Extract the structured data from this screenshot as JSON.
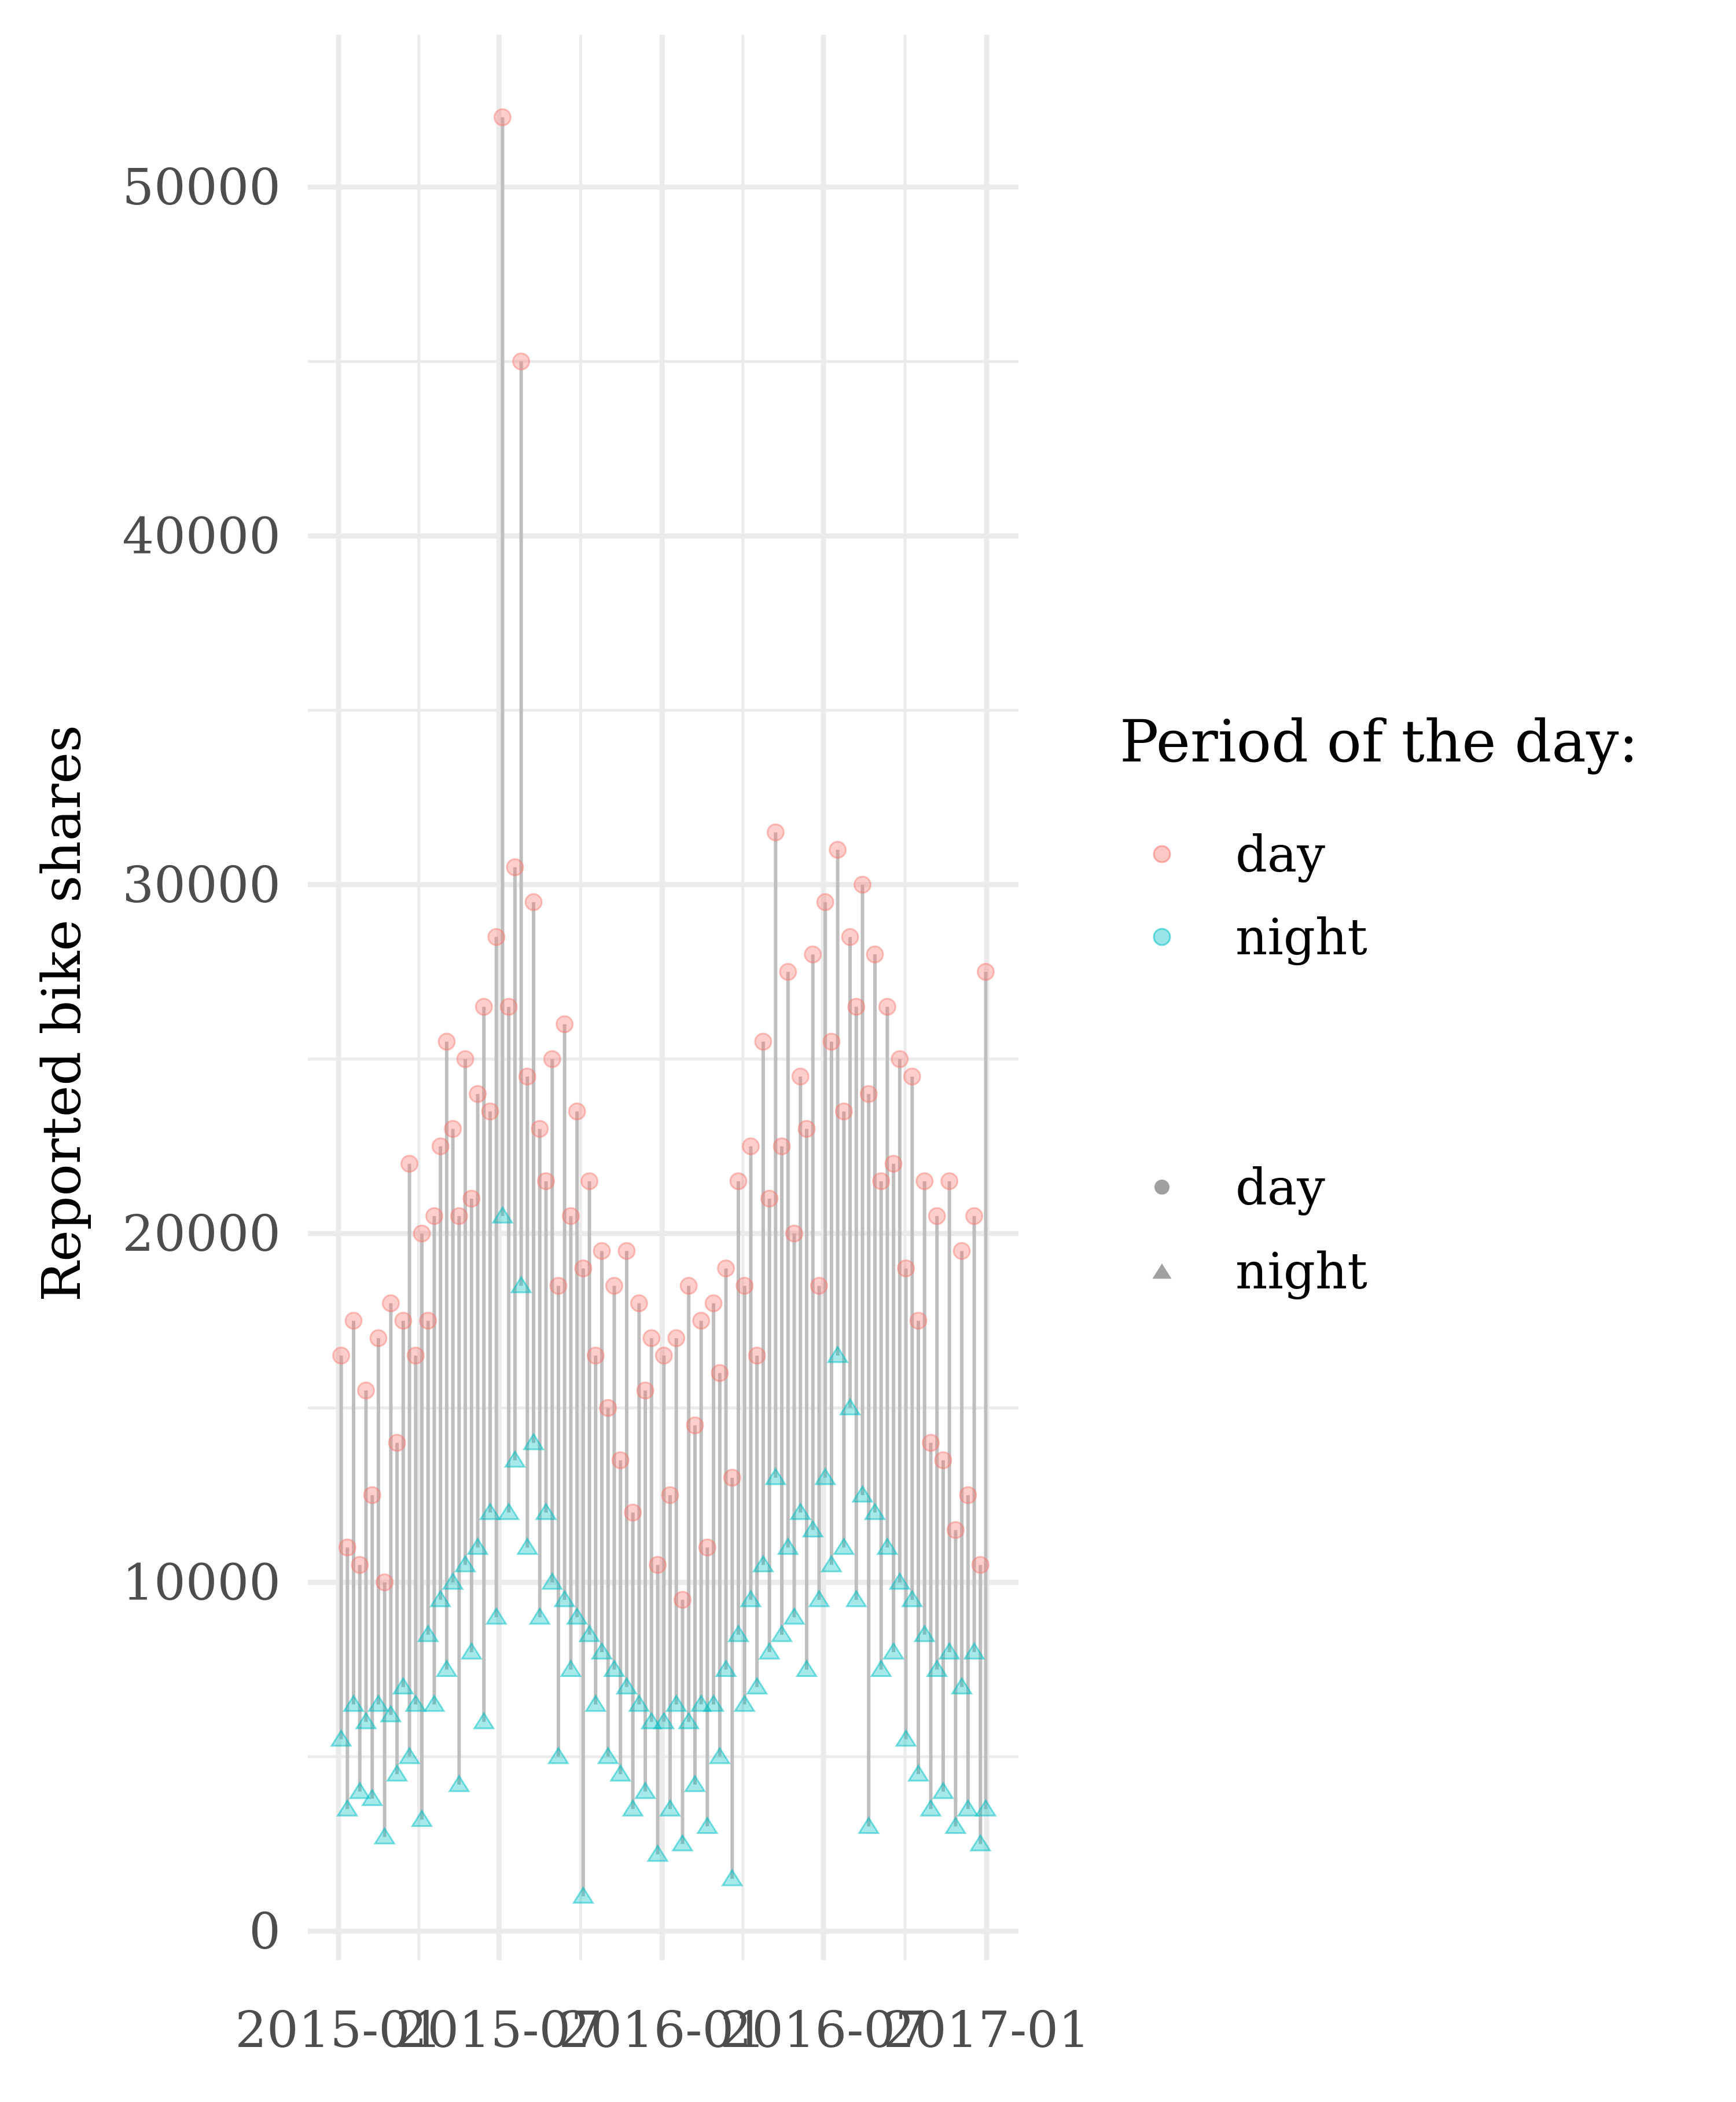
{
  "chart_data": {
    "type": "scatter",
    "title": "",
    "xlabel": "",
    "ylabel": "Reported bike shares",
    "x_type": "date",
    "xlim": [
      "2015-01-01",
      "2017-01-05"
    ],
    "ylim": [
      0,
      52500
    ],
    "x_ticks": [
      "2015-01",
      "2015-07",
      "2016-01",
      "2016-07",
      "2017-01"
    ],
    "x_tick_dates": [
      "2015-01-01",
      "2015-07-01",
      "2016-01-01",
      "2016-07-01",
      "2017-01-01"
    ],
    "y_ticks": [
      0,
      10000,
      20000,
      30000,
      40000,
      50000
    ],
    "grid": true,
    "legend_position": "right",
    "colors": {
      "day": "#F8766D",
      "night": "#00BFC4",
      "segment": "#bebebe",
      "grid": "#ebebeb",
      "shape_key": "#a0a0a0"
    },
    "legends": [
      {
        "title": "Period of the day:",
        "kind": "color",
        "entries": [
          {
            "label": "day",
            "shape": "circle"
          },
          {
            "label": "night",
            "shape": "circle"
          }
        ]
      },
      {
        "title": "",
        "kind": "shape",
        "entries": [
          {
            "label": "day",
            "shape": "circle"
          },
          {
            "label": "night",
            "shape": "triangle"
          }
        ]
      }
    ],
    "series_note_values": "Daily values, one day point and one night point per date, joined by a vertical segment.",
    "series": [
      {
        "name": "day",
        "shape": "circle",
        "values": [
          [
            "2015-01-04",
            16500
          ],
          [
            "2015-01-11",
            11000
          ],
          [
            "2015-01-18",
            17500
          ],
          [
            "2015-01-25",
            10500
          ],
          [
            "2015-02-01",
            15500
          ],
          [
            "2015-02-08",
            12500
          ],
          [
            "2015-02-15",
            17000
          ],
          [
            "2015-02-22",
            10000
          ],
          [
            "2015-03-01",
            18000
          ],
          [
            "2015-03-08",
            14000
          ],
          [
            "2015-03-15",
            17500
          ],
          [
            "2015-03-22",
            22000
          ],
          [
            "2015-03-29",
            16500
          ],
          [
            "2015-04-05",
            20000
          ],
          [
            "2015-04-12",
            17500
          ],
          [
            "2015-04-19",
            20500
          ],
          [
            "2015-04-26",
            22500
          ],
          [
            "2015-05-03",
            25500
          ],
          [
            "2015-05-10",
            23000
          ],
          [
            "2015-05-17",
            20500
          ],
          [
            "2015-05-24",
            25000
          ],
          [
            "2015-05-31",
            21000
          ],
          [
            "2015-06-07",
            24000
          ],
          [
            "2015-06-14",
            26500
          ],
          [
            "2015-06-21",
            23500
          ],
          [
            "2015-06-28",
            28500
          ],
          [
            "2015-07-05",
            52000
          ],
          [
            "2015-07-12",
            26500
          ],
          [
            "2015-07-19",
            30500
          ],
          [
            "2015-07-26",
            45000
          ],
          [
            "2015-08-02",
            24500
          ],
          [
            "2015-08-09",
            29500
          ],
          [
            "2015-08-16",
            23000
          ],
          [
            "2015-08-23",
            21500
          ],
          [
            "2015-08-30",
            25000
          ],
          [
            "2015-09-06",
            18500
          ],
          [
            "2015-09-13",
            26000
          ],
          [
            "2015-09-20",
            20500
          ],
          [
            "2015-09-27",
            23500
          ],
          [
            "2015-10-04",
            19000
          ],
          [
            "2015-10-11",
            21500
          ],
          [
            "2015-10-18",
            16500
          ],
          [
            "2015-10-25",
            19500
          ],
          [
            "2015-11-01",
            15000
          ],
          [
            "2015-11-08",
            18500
          ],
          [
            "2015-11-15",
            13500
          ],
          [
            "2015-11-22",
            19500
          ],
          [
            "2015-11-29",
            12000
          ],
          [
            "2015-12-06",
            18000
          ],
          [
            "2015-12-13",
            15500
          ],
          [
            "2015-12-20",
            17000
          ],
          [
            "2015-12-27",
            10500
          ],
          [
            "2016-01-03",
            16500
          ],
          [
            "2016-01-10",
            12500
          ],
          [
            "2016-01-17",
            17000
          ],
          [
            "2016-01-24",
            9500
          ],
          [
            "2016-01-31",
            18500
          ],
          [
            "2016-02-07",
            14500
          ],
          [
            "2016-02-14",
            17500
          ],
          [
            "2016-02-21",
            11000
          ],
          [
            "2016-02-28",
            18000
          ],
          [
            "2016-03-06",
            16000
          ],
          [
            "2016-03-13",
            19000
          ],
          [
            "2016-03-20",
            13000
          ],
          [
            "2016-03-27",
            21500
          ],
          [
            "2016-04-03",
            18500
          ],
          [
            "2016-04-10",
            22500
          ],
          [
            "2016-04-17",
            16500
          ],
          [
            "2016-04-24",
            25500
          ],
          [
            "2016-05-01",
            21000
          ],
          [
            "2016-05-08",
            31500
          ],
          [
            "2016-05-15",
            22500
          ],
          [
            "2016-05-22",
            27500
          ],
          [
            "2016-05-29",
            20000
          ],
          [
            "2016-06-05",
            24500
          ],
          [
            "2016-06-12",
            23000
          ],
          [
            "2016-06-19",
            28000
          ],
          [
            "2016-06-26",
            18500
          ],
          [
            "2016-07-03",
            29500
          ],
          [
            "2016-07-10",
            25500
          ],
          [
            "2016-07-17",
            31000
          ],
          [
            "2016-07-24",
            23500
          ],
          [
            "2016-07-31",
            28500
          ],
          [
            "2016-08-07",
            26500
          ],
          [
            "2016-08-14",
            30000
          ],
          [
            "2016-08-21",
            24000
          ],
          [
            "2016-08-28",
            28000
          ],
          [
            "2016-09-04",
            21500
          ],
          [
            "2016-09-11",
            26500
          ],
          [
            "2016-09-18",
            22000
          ],
          [
            "2016-09-25",
            25000
          ],
          [
            "2016-10-02",
            19000
          ],
          [
            "2016-10-09",
            24500
          ],
          [
            "2016-10-16",
            17500
          ],
          [
            "2016-10-23",
            21500
          ],
          [
            "2016-10-30",
            14000
          ],
          [
            "2016-11-06",
            20500
          ],
          [
            "2016-11-13",
            13500
          ],
          [
            "2016-11-20",
            21500
          ],
          [
            "2016-11-27",
            11500
          ],
          [
            "2016-12-04",
            19500
          ],
          [
            "2016-12-11",
            12500
          ],
          [
            "2016-12-18",
            20500
          ],
          [
            "2016-12-25",
            10500
          ],
          [
            "2016-12-31",
            27500
          ]
        ]
      },
      {
        "name": "night",
        "shape": "triangle",
        "values": [
          [
            "2015-01-04",
            5500
          ],
          [
            "2015-01-11",
            3500
          ],
          [
            "2015-01-18",
            6500
          ],
          [
            "2015-01-25",
            4000
          ],
          [
            "2015-02-01",
            6000
          ],
          [
            "2015-02-08",
            3800
          ],
          [
            "2015-02-15",
            6500
          ],
          [
            "2015-02-22",
            2700
          ],
          [
            "2015-03-01",
            6200
          ],
          [
            "2015-03-08",
            4500
          ],
          [
            "2015-03-15",
            7000
          ],
          [
            "2015-03-22",
            5000
          ],
          [
            "2015-03-29",
            6500
          ],
          [
            "2015-04-05",
            3200
          ],
          [
            "2015-04-12",
            8500
          ],
          [
            "2015-04-19",
            6500
          ],
          [
            "2015-04-26",
            9500
          ],
          [
            "2015-05-03",
            7500
          ],
          [
            "2015-05-10",
            10000
          ],
          [
            "2015-05-17",
            4200
          ],
          [
            "2015-05-24",
            10500
          ],
          [
            "2015-05-31",
            8000
          ],
          [
            "2015-06-07",
            11000
          ],
          [
            "2015-06-14",
            6000
          ],
          [
            "2015-06-21",
            12000
          ],
          [
            "2015-06-28",
            9000
          ],
          [
            "2015-07-05",
            20500
          ],
          [
            "2015-07-12",
            12000
          ],
          [
            "2015-07-19",
            13500
          ],
          [
            "2015-07-26",
            18500
          ],
          [
            "2015-08-02",
            11000
          ],
          [
            "2015-08-09",
            14000
          ],
          [
            "2015-08-16",
            9000
          ],
          [
            "2015-08-23",
            12000
          ],
          [
            "2015-08-30",
            10000
          ],
          [
            "2015-09-06",
            5000
          ],
          [
            "2015-09-13",
            9500
          ],
          [
            "2015-09-20",
            7500
          ],
          [
            "2015-09-27",
            9000
          ],
          [
            "2015-10-04",
            1000
          ],
          [
            "2015-10-11",
            8500
          ],
          [
            "2015-10-18",
            6500
          ],
          [
            "2015-10-25",
            8000
          ],
          [
            "2015-11-01",
            5000
          ],
          [
            "2015-11-08",
            7500
          ],
          [
            "2015-11-15",
            4500
          ],
          [
            "2015-11-22",
            7000
          ],
          [
            "2015-11-29",
            3500
          ],
          [
            "2015-12-06",
            6500
          ],
          [
            "2015-12-13",
            4000
          ],
          [
            "2015-12-20",
            6000
          ],
          [
            "2015-12-27",
            2200
          ],
          [
            "2016-01-03",
            6000
          ],
          [
            "2016-01-10",
            3500
          ],
          [
            "2016-01-17",
            6500
          ],
          [
            "2016-01-24",
            2500
          ],
          [
            "2016-01-31",
            6000
          ],
          [
            "2016-02-07",
            4200
          ],
          [
            "2016-02-14",
            6500
          ],
          [
            "2016-02-21",
            3000
          ],
          [
            "2016-02-28",
            6500
          ],
          [
            "2016-03-06",
            5000
          ],
          [
            "2016-03-13",
            7500
          ],
          [
            "2016-03-20",
            1500
          ],
          [
            "2016-03-27",
            8500
          ],
          [
            "2016-04-03",
            6500
          ],
          [
            "2016-04-10",
            9500
          ],
          [
            "2016-04-17",
            7000
          ],
          [
            "2016-04-24",
            10500
          ],
          [
            "2016-05-01",
            8000
          ],
          [
            "2016-05-08",
            13000
          ],
          [
            "2016-05-15",
            8500
          ],
          [
            "2016-05-22",
            11000
          ],
          [
            "2016-05-29",
            9000
          ],
          [
            "2016-06-05",
            12000
          ],
          [
            "2016-06-12",
            7500
          ],
          [
            "2016-06-19",
            11500
          ],
          [
            "2016-06-26",
            9500
          ],
          [
            "2016-07-03",
            13000
          ],
          [
            "2016-07-10",
            10500
          ],
          [
            "2016-07-17",
            16500
          ],
          [
            "2016-07-24",
            11000
          ],
          [
            "2016-07-31",
            15000
          ],
          [
            "2016-08-07",
            9500
          ],
          [
            "2016-08-14",
            12500
          ],
          [
            "2016-08-21",
            3000
          ],
          [
            "2016-08-28",
            12000
          ],
          [
            "2016-09-04",
            7500
          ],
          [
            "2016-09-11",
            11000
          ],
          [
            "2016-09-18",
            8000
          ],
          [
            "2016-09-25",
            10000
          ],
          [
            "2016-10-02",
            5500
          ],
          [
            "2016-10-09",
            9500
          ],
          [
            "2016-10-16",
            4500
          ],
          [
            "2016-10-23",
            8500
          ],
          [
            "2016-10-30",
            3500
          ],
          [
            "2016-11-06",
            7500
          ],
          [
            "2016-11-13",
            4000
          ],
          [
            "2016-11-20",
            8000
          ],
          [
            "2016-11-27",
            3000
          ],
          [
            "2016-12-04",
            7000
          ],
          [
            "2016-12-11",
            3500
          ],
          [
            "2016-12-18",
            8000
          ],
          [
            "2016-12-25",
            2500
          ],
          [
            "2016-12-31",
            3500
          ]
        ]
      }
    ]
  }
}
